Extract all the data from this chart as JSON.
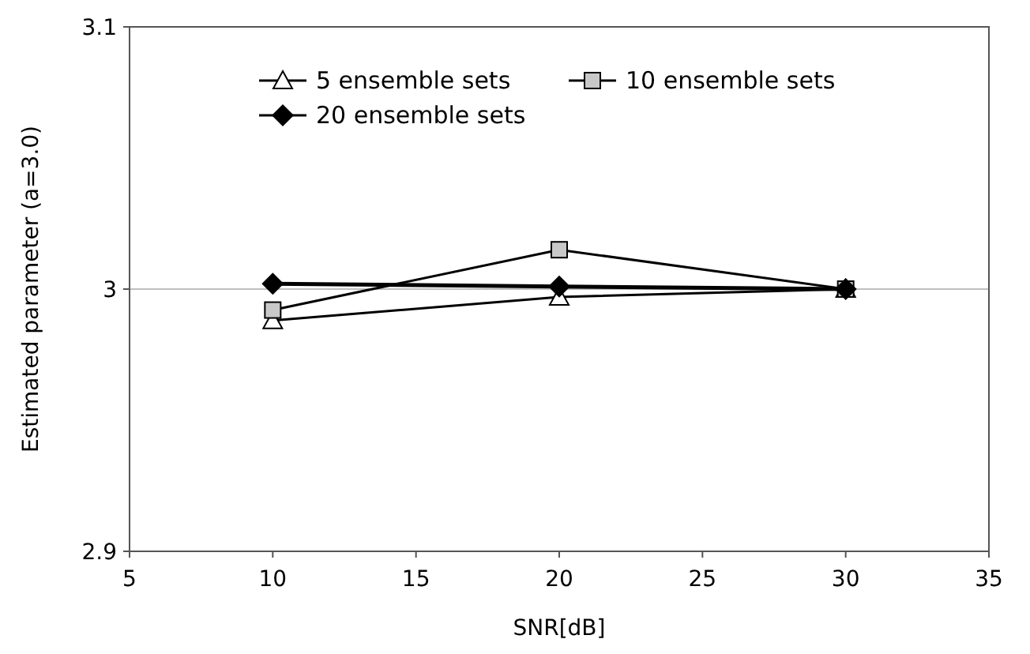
{
  "chart_data": {
    "type": "line",
    "xlabel": "SNR[dB]",
    "ylabel": "Estimated parameter (a=3.0)",
    "x": [
      10,
      20,
      30
    ],
    "series": [
      {
        "name": "5 ensemble sets",
        "color": "#000000",
        "marker": "triangle",
        "values": [
          2.988,
          2.997,
          3.0
        ]
      },
      {
        "name": "10 ensemble sets",
        "color": "#000000",
        "marker": "square",
        "values": [
          2.992,
          3.015,
          3.0
        ]
      },
      {
        "name": "20 ensemble sets",
        "color": "#000000",
        "marker": "diamond",
        "values": [
          3.002,
          3.001,
          3.0
        ]
      }
    ],
    "xlim": [
      5,
      35
    ],
    "xticks": [
      5,
      10,
      15,
      20,
      25,
      30,
      35
    ],
    "ylim": [
      2.9,
      3.1
    ],
    "yticks": [
      2.9,
      3,
      3.1
    ],
    "grid": "y",
    "legend": "top"
  }
}
